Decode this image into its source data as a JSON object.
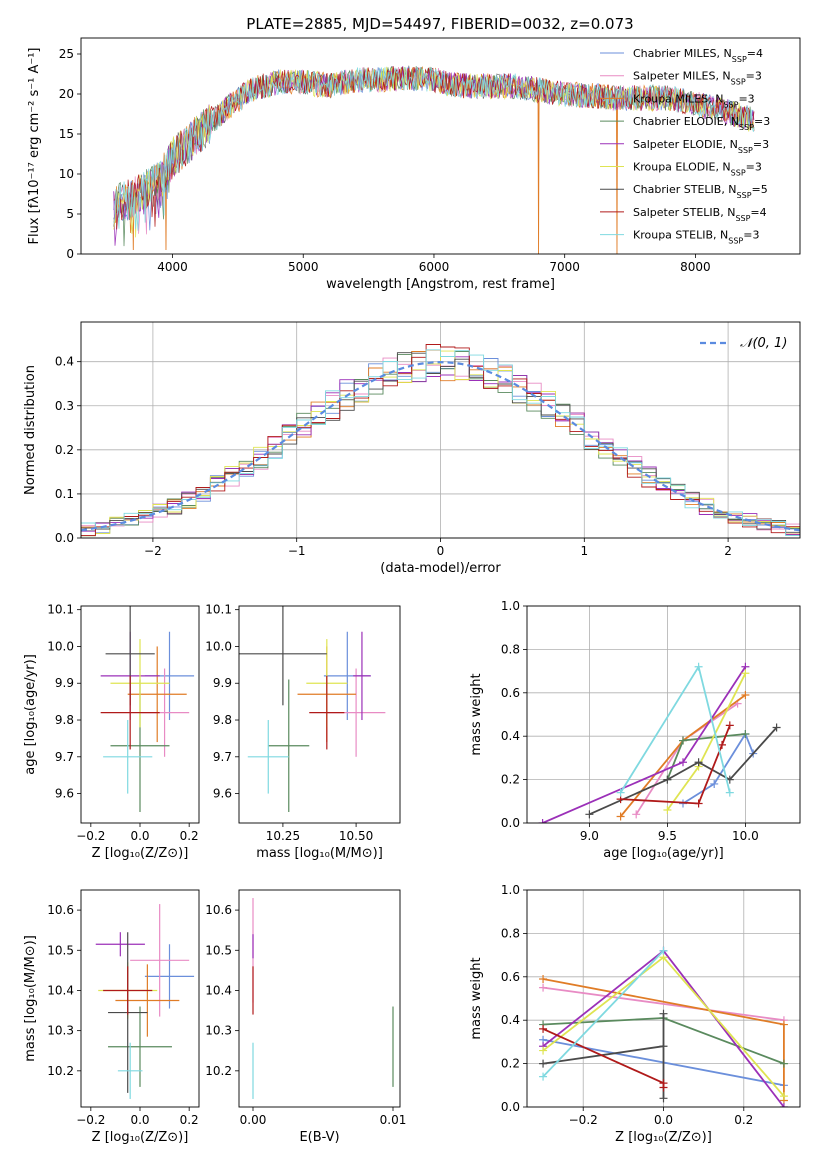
{
  "figure": {
    "title": "PLATE=2885, MJD=54497, FIBERID=0032, z=0.073"
  },
  "models": [
    {
      "name": "Chabrier MILES",
      "nssp": "4",
      "color": "#6b8fdb"
    },
    {
      "name": "Salpeter MILES",
      "nssp": "3",
      "color": "#e88bc4"
    },
    {
      "name": "Kroupa MILES",
      "nssp": "3",
      "color": "#e07c26"
    },
    {
      "name": "Chabrier ELODIE",
      "nssp": "3",
      "color": "#5a8a5e"
    },
    {
      "name": "Salpeter ELODIE",
      "nssp": "3",
      "color": "#9b30b8"
    },
    {
      "name": "Kroupa ELODIE",
      "nssp": "3",
      "color": "#dfe452"
    },
    {
      "name": "Chabrier STELIB",
      "nssp": "5",
      "color": "#4a4a4a"
    },
    {
      "name": "Salpeter STELIB",
      "nssp": "4",
      "color": "#b01a1a"
    },
    {
      "name": "Kroupa STELIB",
      "nssp": "3",
      "color": "#7fd9e0"
    }
  ],
  "chart_data": [
    {
      "id": "spectrum",
      "type": "line",
      "xlabel": "wavelength [Angstrom, rest frame]",
      "ylabel": "Flux [fλ10⁻¹⁷ erg cm⁻² s⁻¹ A⁻¹]",
      "xlim": [
        3300,
        8800
      ],
      "ylim": [
        0,
        27
      ],
      "xticks": [
        4000,
        5000,
        6000,
        7000,
        8000
      ],
      "yticks": [
        0,
        5,
        10,
        15,
        20,
        25
      ],
      "continuum": {
        "x": [
          3550,
          3700,
          3900,
          4000,
          4200,
          4400,
          4600,
          4800,
          5000,
          5200,
          5400,
          5600,
          5800,
          6000,
          6200,
          6400,
          6600,
          6800,
          7000,
          7200,
          7400,
          7600,
          7800,
          8000,
          8200,
          8400,
          8450
        ],
        "y": [
          6,
          7,
          9,
          12,
          15,
          18,
          20.5,
          21.5,
          21.5,
          21,
          21.8,
          21.8,
          22,
          21.8,
          21,
          21,
          21,
          20.5,
          20,
          19.8,
          19.5,
          19.5,
          19.5,
          18.8,
          18,
          17,
          16.5
        ]
      },
      "dips": [
        {
          "x": 6800,
          "y": 0
        },
        {
          "x": 7400,
          "y": 0
        },
        {
          "x": 3700,
          "y": 0.5
        },
        {
          "x": 3950,
          "y": 0.5
        }
      ]
    },
    {
      "id": "residuals",
      "type": "histogram",
      "xlabel": "(data-model)/error",
      "ylabel": "Normed distribution",
      "xlim": [
        -2.5,
        2.5
      ],
      "ylim": [
        0,
        0.49
      ],
      "xticks": [
        -2,
        -1,
        0,
        1,
        2
      ],
      "yticks": [
        0.0,
        0.1,
        0.2,
        0.3,
        0.4
      ],
      "grid": true,
      "bins": 50,
      "reference": {
        "label": "𝒩(0, 1)",
        "mean": 0,
        "sigma": 1,
        "style": "dashed"
      },
      "legend": "top-right"
    },
    {
      "id": "age_vs_Z",
      "type": "errorbar",
      "xlabel": "Z [log₁₀(Z/Z⊙)]",
      "ylabel": "age  [log₁₀(age/yr)]",
      "xlim": [
        -0.24,
        0.24
      ],
      "ylim": [
        9.52,
        10.11
      ],
      "xticks": [
        -0.2,
        0.0,
        0.2
      ],
      "yticks": [
        9.6,
        9.7,
        9.8,
        9.9,
        10.0,
        10.1
      ],
      "points": [
        {
          "model": 0,
          "x": 0.12,
          "y": 9.92,
          "xerr": 0.1,
          "yerr": 0.12
        },
        {
          "model": 1,
          "x": 0.1,
          "y": 9.82,
          "xerr": 0.1,
          "yerr": 0.12
        },
        {
          "model": 2,
          "x": 0.07,
          "y": 9.87,
          "xerr": 0.12,
          "yerr": 0.13
        },
        {
          "model": 3,
          "x": 0.0,
          "y": 9.73,
          "xerr": 0.12,
          "yerr": 0.18
        },
        {
          "model": 4,
          "x": -0.04,
          "y": 9.92,
          "xerr": 0.12,
          "yerr": 0.12
        },
        {
          "model": 5,
          "x": 0.0,
          "y": 9.9,
          "xerr": 0.12,
          "yerr": 0.12
        },
        {
          "model": 6,
          "x": -0.04,
          "y": 9.98,
          "xerr": 0.1,
          "yerr": 0.14
        },
        {
          "model": 7,
          "x": -0.04,
          "y": 9.82,
          "xerr": 0.12,
          "yerr": 0.1
        },
        {
          "model": 8,
          "x": -0.05,
          "y": 9.7,
          "xerr": 0.1,
          "yerr": 0.1
        }
      ]
    },
    {
      "id": "age_vs_mass",
      "type": "errorbar",
      "xlabel": "mass [log₁₀(M/M⊙)]",
      "ylabel": "",
      "xlim": [
        10.1,
        10.65
      ],
      "ylim": [
        9.52,
        10.11
      ],
      "xticks": [
        10.25,
        10.5
      ],
      "yticks": [
        9.6,
        9.7,
        9.8,
        9.9,
        10.0,
        10.1
      ],
      "points": [
        {
          "model": 0,
          "x": 10.47,
          "y": 9.92,
          "xerr": 0.08,
          "yerr": 0.12
        },
        {
          "model": 1,
          "x": 10.5,
          "y": 9.82,
          "xerr": 0.1,
          "yerr": 0.12
        },
        {
          "model": 2,
          "x": 10.4,
          "y": 9.87,
          "xerr": 0.1,
          "yerr": 0.13
        },
        {
          "model": 3,
          "x": 10.27,
          "y": 9.73,
          "xerr": 0.07,
          "yerr": 0.18
        },
        {
          "model": 4,
          "x": 10.52,
          "y": 9.92,
          "xerr": 0.03,
          "yerr": 0.12
        },
        {
          "model": 5,
          "x": 10.4,
          "y": 9.9,
          "xerr": 0.07,
          "yerr": 0.12
        },
        {
          "model": 6,
          "x": 10.25,
          "y": 9.98,
          "xerr": 0.15,
          "yerr": 0.14
        },
        {
          "model": 7,
          "x": 10.4,
          "y": 9.82,
          "xerr": 0.06,
          "yerr": 0.1
        },
        {
          "model": 8,
          "x": 10.2,
          "y": 9.7,
          "xerr": 0.07,
          "yerr": 0.1
        }
      ]
    },
    {
      "id": "weight_vs_age",
      "type": "line",
      "xlabel": "age  [log₁₀(age/yr)]",
      "ylabel": "mass weight",
      "xlim": [
        8.6,
        10.35
      ],
      "ylim": [
        0,
        1
      ],
      "xticks": [
        9.0,
        9.5,
        10.0
      ],
      "yticks": [
        0.0,
        0.2,
        0.4,
        0.6,
        0.8,
        1.0
      ],
      "grid": true,
      "series": [
        {
          "model": 0,
          "x": [
            9.6,
            9.8,
            10.0,
            10.05
          ],
          "y": [
            0.09,
            0.18,
            0.41,
            0.32
          ]
        },
        {
          "model": 1,
          "x": [
            9.3,
            9.6,
            9.95
          ],
          "y": [
            0.04,
            0.38,
            0.55
          ]
        },
        {
          "model": 2,
          "x": [
            9.2,
            9.6,
            10.0
          ],
          "y": [
            0.03,
            0.38,
            0.59
          ]
        },
        {
          "model": 3,
          "x": [
            9.5,
            9.6,
            10.0
          ],
          "y": [
            0.2,
            0.38,
            0.41
          ]
        },
        {
          "model": 4,
          "x": [
            8.7,
            9.6,
            10.0
          ],
          "y": [
            0.0,
            0.28,
            0.72
          ]
        },
        {
          "model": 5,
          "x": [
            9.5,
            9.7,
            10.0
          ],
          "y": [
            0.06,
            0.26,
            0.69
          ]
        },
        {
          "model": 6,
          "x": [
            9.0,
            9.5,
            9.7,
            9.9,
            10.2
          ],
          "y": [
            0.04,
            0.2,
            0.28,
            0.2,
            0.44
          ]
        },
        {
          "model": 7,
          "x": [
            9.2,
            9.7,
            9.9,
            9.85
          ],
          "y": [
            0.11,
            0.09,
            0.45,
            0.36
          ]
        },
        {
          "model": 8,
          "x": [
            9.2,
            9.7,
            9.9
          ],
          "y": [
            0.14,
            0.72,
            0.14
          ]
        }
      ]
    },
    {
      "id": "mass_vs_Z",
      "type": "errorbar",
      "xlabel": "Z [log₁₀(Z/Z⊙)]",
      "ylabel": "mass [log₁₀(M/M⊙)]",
      "xlim": [
        -0.24,
        0.24
      ],
      "ylim": [
        10.11,
        10.65
      ],
      "xticks": [
        -0.2,
        0.0,
        0.2
      ],
      "yticks": [
        10.2,
        10.3,
        10.4,
        10.5,
        10.6
      ],
      "points": [
        {
          "model": 0,
          "x": 0.12,
          "y": 10.435,
          "xerr": 0.1,
          "yerr": 0.08
        },
        {
          "model": 1,
          "x": 0.08,
          "y": 10.475,
          "xerr": 0.12,
          "yerr": 0.14
        },
        {
          "model": 2,
          "x": 0.03,
          "y": 10.375,
          "xerr": 0.13,
          "yerr": 0.09
        },
        {
          "model": 3,
          "x": 0.0,
          "y": 10.26,
          "xerr": 0.13,
          "yerr": 0.1
        },
        {
          "model": 4,
          "x": -0.08,
          "y": 10.515,
          "xerr": 0.1,
          "yerr": 0.03
        },
        {
          "model": 5,
          "x": -0.05,
          "y": 10.4,
          "xerr": 0.12,
          "yerr": 0.07
        },
        {
          "model": 6,
          "x": -0.05,
          "y": 10.345,
          "xerr": 0.08,
          "yerr": 0.2
        },
        {
          "model": 7,
          "x": -0.05,
          "y": 10.4,
          "xerr": 0.1,
          "yerr": 0.06
        },
        {
          "model": 8,
          "x": -0.04,
          "y": 10.2,
          "xerr": 0.05,
          "yerr": 0.07
        }
      ]
    },
    {
      "id": "mass_vs_ebv",
      "type": "errorbar",
      "xlabel": "E(B-V)",
      "ylabel": "",
      "xlim": [
        -0.001,
        0.0105
      ],
      "ylim": [
        10.11,
        10.65
      ],
      "xticks": [
        0.0,
        0.01
      ],
      "yticks": [
        10.2,
        10.3,
        10.4,
        10.5,
        10.6
      ],
      "points": [
        {
          "model": 1,
          "x": 0.0,
          "y": 10.5,
          "xerr": 0,
          "yerr": 0.13
        },
        {
          "model": 4,
          "x": 0.0,
          "y": 10.51,
          "xerr": 0,
          "yerr": 0.03
        },
        {
          "model": 7,
          "x": 0.0,
          "y": 10.4,
          "xerr": 0,
          "yerr": 0.06
        },
        {
          "model": 8,
          "x": 0.0,
          "y": 10.2,
          "xerr": 0,
          "yerr": 0.07
        },
        {
          "model": 3,
          "x": 0.01,
          "y": 10.26,
          "xerr": 0,
          "yerr": 0.1
        }
      ]
    },
    {
      "id": "weight_vs_Z",
      "type": "line",
      "xlabel": "Z [log₁₀(Z/Z⊙)]",
      "ylabel": "mass weight",
      "xlim": [
        -0.34,
        0.34
      ],
      "ylim": [
        0,
        1
      ],
      "xticks": [
        -0.2,
        0.0,
        0.2
      ],
      "yticks": [
        0.0,
        0.2,
        0.4,
        0.6,
        0.8,
        1.0
      ],
      "grid": true,
      "series": [
        {
          "model": 0,
          "x": [
            -0.3,
            0.3
          ],
          "y": [
            0.31,
            0.1
          ]
        },
        {
          "model": 1,
          "x": [
            -0.3,
            0.3
          ],
          "y": [
            0.55,
            0.4
          ]
        },
        {
          "model": 2,
          "x": [
            -0.3,
            0.3,
            0.3
          ],
          "y": [
            0.59,
            0.38,
            0.03
          ]
        },
        {
          "model": 3,
          "x": [
            -0.3,
            0.0,
            0.3
          ],
          "y": [
            0.38,
            0.41,
            0.2
          ]
        },
        {
          "model": 4,
          "x": [
            -0.3,
            0.0,
            0.3
          ],
          "y": [
            0.28,
            0.72,
            0.0
          ]
        },
        {
          "model": 5,
          "x": [
            -0.3,
            0.0,
            0.3
          ],
          "y": [
            0.26,
            0.69,
            0.05
          ]
        },
        {
          "model": 6,
          "x": [
            -0.3,
            0.0,
            0.0,
            0.0
          ],
          "y": [
            0.2,
            0.28,
            0.43,
            0.04
          ]
        },
        {
          "model": 7,
          "x": [
            -0.3,
            0.0,
            0.0
          ],
          "y": [
            0.36,
            0.11,
            0.09
          ]
        },
        {
          "model": 8,
          "x": [
            -0.3,
            0.0
          ],
          "y": [
            0.14,
            0.72
          ]
        }
      ]
    }
  ]
}
